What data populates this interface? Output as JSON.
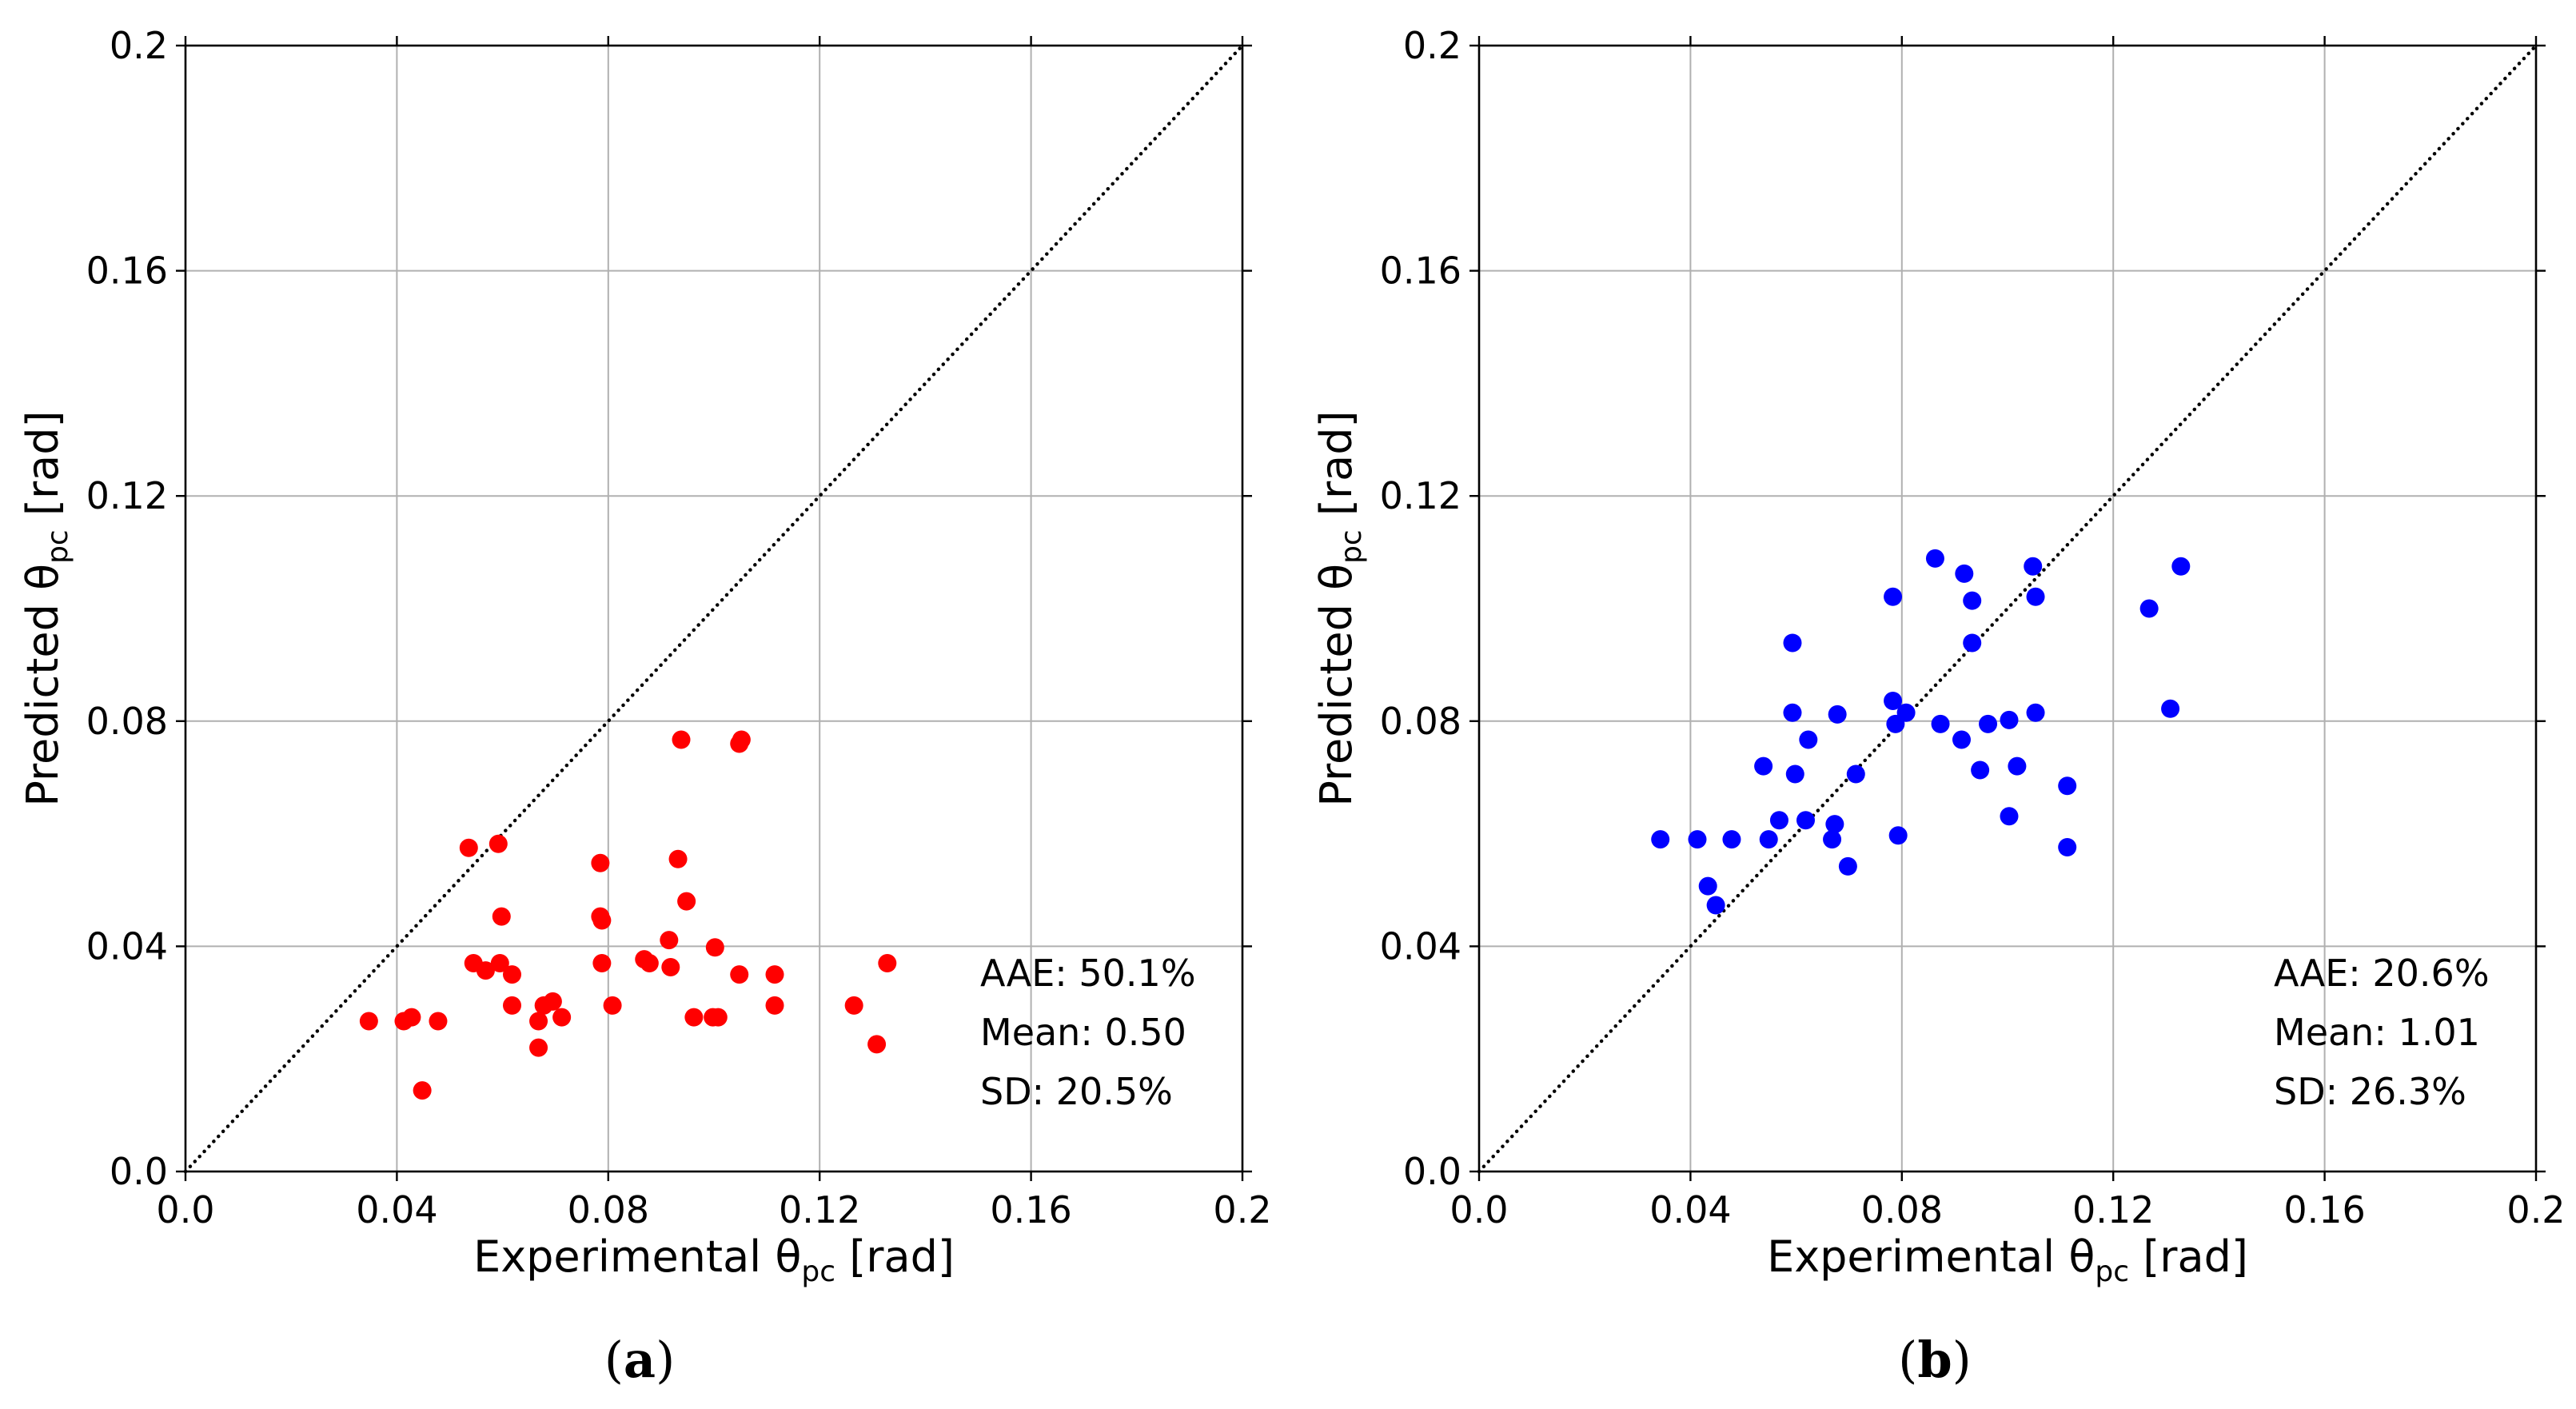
{
  "chart_data": [
    {
      "type": "scatter",
      "panel_label": "a",
      "title": "",
      "xlabel": {
        "main": "Experimental θ",
        "sub": "pc",
        "unit": " [rad]"
      },
      "ylabel": {
        "main": "Predicted θ",
        "sub": "pc",
        "unit": " [rad]"
      },
      "xlim": [
        0.0,
        0.2
      ],
      "ylim": [
        0.0,
        0.2
      ],
      "xticks": [
        0.0,
        0.04,
        0.08,
        0.12,
        0.16,
        0.2
      ],
      "yticks": [
        0.0,
        0.04,
        0.08,
        0.12,
        0.16,
        0.2
      ],
      "xtick_labels": [
        "0.0",
        "0.04",
        "0.08",
        "0.12",
        "0.16",
        "0.2"
      ],
      "ytick_labels": [
        "0.0",
        "0.04",
        "0.08",
        "0.12",
        "0.16",
        "0.2"
      ],
      "grid": true,
      "reference_line": "y = x (dotted)",
      "marker_color": "#ff0000",
      "stats": {
        "aae": "AAE: 50.1%",
        "mean": "Mean: 0.50",
        "sd": "SD: 20.5%"
      },
      "points": [
        [
          0.0347,
          0.0267
        ],
        [
          0.0413,
          0.0267
        ],
        [
          0.0428,
          0.0274
        ],
        [
          0.0478,
          0.0267
        ],
        [
          0.0448,
          0.0144
        ],
        [
          0.0536,
          0.0575
        ],
        [
          0.0545,
          0.037
        ],
        [
          0.0568,
          0.0357
        ],
        [
          0.0592,
          0.0582
        ],
        [
          0.0598,
          0.0453
        ],
        [
          0.0595,
          0.037
        ],
        [
          0.0618,
          0.035
        ],
        [
          0.0618,
          0.0295
        ],
        [
          0.0668,
          0.0267
        ],
        [
          0.0668,
          0.022
        ],
        [
          0.0678,
          0.0295
        ],
        [
          0.0695,
          0.0302
        ],
        [
          0.0712,
          0.0274
        ],
        [
          0.0785,
          0.0548
        ],
        [
          0.0785,
          0.0453
        ],
        [
          0.0788,
          0.0446
        ],
        [
          0.0788,
          0.037
        ],
        [
          0.0808,
          0.0295
        ],
        [
          0.0868,
          0.0377
        ],
        [
          0.0878,
          0.037
        ],
        [
          0.0915,
          0.0411
        ],
        [
          0.0918,
          0.0363
        ],
        [
          0.0932,
          0.0555
        ],
        [
          0.0938,
          0.0767
        ],
        [
          0.0948,
          0.048
        ],
        [
          0.0962,
          0.0274
        ],
        [
          0.0998,
          0.0274
        ],
        [
          0.1008,
          0.0274
        ],
        [
          0.1002,
          0.0398
        ],
        [
          0.1048,
          0.076
        ],
        [
          0.1052,
          0.0767
        ],
        [
          0.1048,
          0.035
        ],
        [
          0.1115,
          0.035
        ],
        [
          0.1115,
          0.0295
        ],
        [
          0.1265,
          0.0295
        ],
        [
          0.1308,
          0.0226
        ],
        [
          0.1328,
          0.037
        ]
      ]
    },
    {
      "type": "scatter",
      "panel_label": "b",
      "title": "",
      "xlabel": {
        "main": "Experimental θ",
        "sub": "pc",
        "unit": " [rad]"
      },
      "ylabel": {
        "main": "Predicted θ",
        "sub": "pc",
        "unit": " [rad]"
      },
      "xlim": [
        0.0,
        0.2
      ],
      "ylim": [
        0.0,
        0.2
      ],
      "xticks": [
        0.0,
        0.04,
        0.08,
        0.12,
        0.16,
        0.2
      ],
      "yticks": [
        0.0,
        0.04,
        0.08,
        0.12,
        0.16,
        0.2
      ],
      "xtick_labels": [
        "0.0",
        "0.04",
        "0.08",
        "0.12",
        "0.16",
        "0.2"
      ],
      "ytick_labels": [
        "0.0",
        "0.04",
        "0.08",
        "0.12",
        "0.16",
        "0.2"
      ],
      "grid": true,
      "reference_line": "y = x (dotted)",
      "marker_color": "#0000ff",
      "stats": {
        "aae": "AAE: 20.6%",
        "mean": "Mean: 1.01",
        "sd": "SD: 26.3%"
      },
      "points": [
        [
          0.0343,
          0.059
        ],
        [
          0.0413,
          0.059
        ],
        [
          0.0433,
          0.0507
        ],
        [
          0.0448,
          0.0473
        ],
        [
          0.0478,
          0.059
        ],
        [
          0.0538,
          0.072
        ],
        [
          0.0548,
          0.059
        ],
        [
          0.0568,
          0.0624
        ],
        [
          0.0593,
          0.0939
        ],
        [
          0.0593,
          0.0815
        ],
        [
          0.0598,
          0.0706
        ],
        [
          0.0618,
          0.0624
        ],
        [
          0.0623,
          0.0767
        ],
        [
          0.0668,
          0.059
        ],
        [
          0.0673,
          0.0617
        ],
        [
          0.0678,
          0.0812
        ],
        [
          0.0698,
          0.0542
        ],
        [
          0.0713,
          0.0706
        ],
        [
          0.0783,
          0.1021
        ],
        [
          0.0783,
          0.0836
        ],
        [
          0.0788,
          0.0795
        ],
        [
          0.0793,
          0.0597
        ],
        [
          0.0808,
          0.0815
        ],
        [
          0.0863,
          0.1089
        ],
        [
          0.0873,
          0.0795
        ],
        [
          0.0913,
          0.0767
        ],
        [
          0.0918,
          0.1062
        ],
        [
          0.0933,
          0.1014
        ],
        [
          0.0933,
          0.0939
        ],
        [
          0.0948,
          0.0713
        ],
        [
          0.0963,
          0.0795
        ],
        [
          0.1003,
          0.0631
        ],
        [
          0.1003,
          0.0802
        ],
        [
          0.1018,
          0.072
        ],
        [
          0.1048,
          0.1075
        ],
        [
          0.1053,
          0.1021
        ],
        [
          0.1053,
          0.0815
        ],
        [
          0.1113,
          0.0685
        ],
        [
          0.1113,
          0.0576
        ],
        [
          0.1268,
          0.1
        ],
        [
          0.1308,
          0.0822
        ],
        [
          0.1328,
          0.1075
        ]
      ]
    }
  ]
}
